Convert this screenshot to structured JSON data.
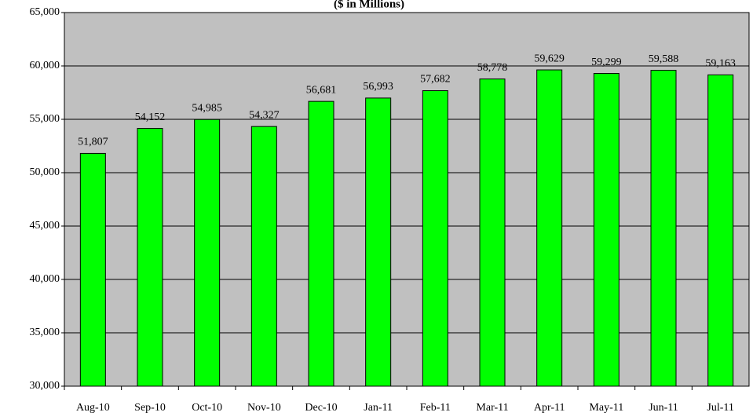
{
  "chart_data": {
    "type": "bar",
    "title": "($ in Millions)",
    "categories": [
      "Aug-10",
      "Sep-10",
      "Oct-10",
      "Nov-10",
      "Dec-10",
      "Jan-11",
      "Feb-11",
      "Mar-11",
      "Apr-11",
      "May-11",
      "Jun-11",
      "Jul-11"
    ],
    "values": [
      51807,
      54152,
      54985,
      54327,
      56681,
      56993,
      57682,
      58778,
      59629,
      59299,
      59588,
      59163
    ],
    "value_labels": [
      "51,807",
      "54,152",
      "54,985",
      "54,327",
      "56,681",
      "56,993",
      "57,682",
      "58,778",
      "59,629",
      "59,299",
      "59,588",
      "59,163"
    ],
    "color": "#00ff00",
    "background": "#c0c0c0",
    "ylim": [
      30000,
      65000
    ],
    "yticks": [
      {
        "value": 30000,
        "label": "30,000"
      },
      {
        "value": 35000,
        "label": "35,000"
      },
      {
        "value": 40000,
        "label": "40,000"
      },
      {
        "value": 45000,
        "label": "45,000"
      },
      {
        "value": 50000,
        "label": "50,000"
      },
      {
        "value": 55000,
        "label": "55,000"
      },
      {
        "value": 60000,
        "label": "60,000"
      },
      {
        "value": 65000,
        "label": "65,000"
      }
    ],
    "grid": true
  }
}
